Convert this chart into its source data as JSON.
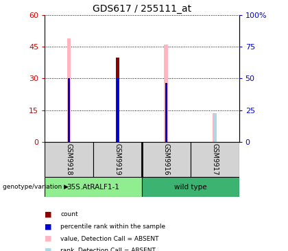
{
  "title": "GDS617 / 255111_at",
  "samples": [
    "GSM9918",
    "GSM9919",
    "GSM9916",
    "GSM9917"
  ],
  "groups": [
    {
      "label": "35S.AtRALF1-1",
      "color": "#90EE90",
      "indices": [
        0,
        1
      ]
    },
    {
      "label": "wild type",
      "color": "#3CB371",
      "indices": [
        2,
        3
      ]
    }
  ],
  "pink_bars": [
    49.0,
    40.0,
    46.0,
    13.5
  ],
  "red_bar_idx": 1,
  "red_bar_val": 40.0,
  "blue_markers": [
    30.0,
    30.0,
    28.0,
    null
  ],
  "light_blue_bar": [
    null,
    null,
    null,
    13.5
  ],
  "left_ylim": [
    0,
    60
  ],
  "left_yticks": [
    0,
    15,
    30,
    45,
    60
  ],
  "right_ylim": [
    0,
    100
  ],
  "right_yticks": [
    0,
    25,
    50,
    75,
    100
  ],
  "right_yticklabels": [
    "0",
    "25",
    "50",
    "75",
    "100%"
  ],
  "left_axis_color": "#CC0000",
  "right_axis_color": "#0000CC",
  "pink_color": "#FFB6C1",
  "red_color": "#8B0000",
  "blue_color": "#0000CD",
  "light_blue_color": "#ADD8E6",
  "label_count": "count",
  "label_percentile": "percentile rank within the sample",
  "label_value_absent": "value, Detection Call = ABSENT",
  "label_rank_absent": "rank, Detection Call = ABSENT",
  "genotype_label": "genotype/variation",
  "bg_color": "#FFFFFF"
}
